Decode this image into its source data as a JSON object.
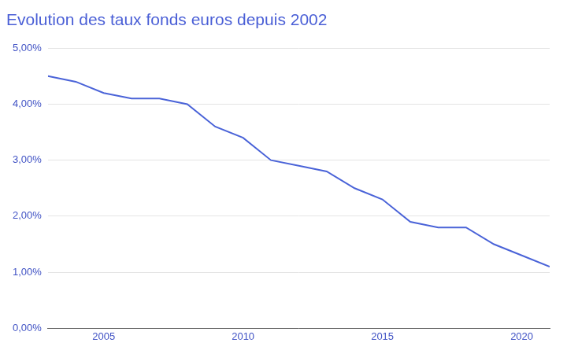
{
  "chart_data": {
    "type": "line",
    "title": "Evolution des taux fonds euros depuis 2002",
    "x": [
      2003,
      2004,
      2005,
      2006,
      2007,
      2008,
      2009,
      2010,
      2011,
      2012,
      2013,
      2014,
      2015,
      2016,
      2017,
      2018,
      2019,
      2020,
      2021
    ],
    "values": [
      4.5,
      4.4,
      4.2,
      4.1,
      4.1,
      4.0,
      3.6,
      3.4,
      3.0,
      2.9,
      2.8,
      2.5,
      2.3,
      1.9,
      1.8,
      1.8,
      1.5,
      1.3,
      1.1
    ],
    "color": "#4a63d8",
    "xlim": [
      2003,
      2021
    ],
    "xticks": [
      2005,
      2010,
      2015,
      2020
    ],
    "ylim": [
      0,
      5
    ],
    "yticks": [
      {
        "value": 0,
        "label": "0,00%"
      },
      {
        "value": 1,
        "label": "1,00%"
      },
      {
        "value": 2,
        "label": "2,00%"
      },
      {
        "value": 3,
        "label": "3,00%"
      },
      {
        "value": 4,
        "label": "4,00%"
      },
      {
        "value": 5,
        "label": "5,00%"
      }
    ],
    "grid": true
  }
}
